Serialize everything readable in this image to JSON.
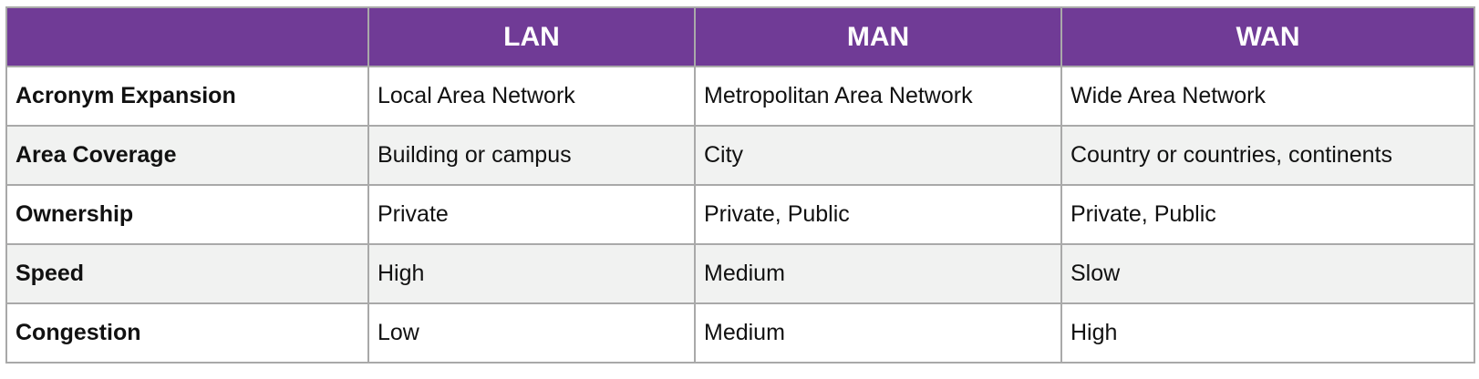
{
  "table": {
    "headers": [
      "",
      "LAN",
      "MAN",
      "WAN"
    ],
    "rows": [
      {
        "label": "Acronym Expansion",
        "cells": [
          "Local Area Network",
          "Metropolitan Area Network",
          "Wide Area Network"
        ]
      },
      {
        "label": "Area Coverage",
        "cells": [
          "Building or campus",
          "City",
          "Country or countries, continents"
        ]
      },
      {
        "label": "Ownership",
        "cells": [
          "Private",
          "Private, Public",
          "Private, Public"
        ]
      },
      {
        "label": "Speed",
        "cells": [
          "High",
          "Medium",
          "Slow"
        ]
      },
      {
        "label": "Congestion",
        "cells": [
          "Low",
          "Medium",
          "High"
        ]
      }
    ]
  },
  "colors": {
    "header_bg": "#703b96",
    "header_text": "#ffffff",
    "alt_row_bg": "#f1f2f1",
    "border": "#a9a9a9"
  }
}
